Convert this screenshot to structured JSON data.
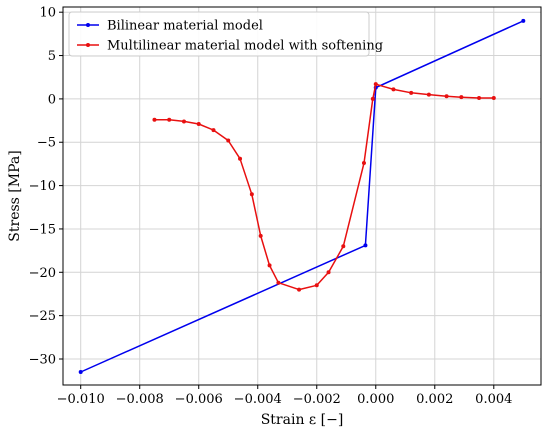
{
  "chart_data": {
    "type": "line",
    "title": "",
    "xlabel": "Strain ε [−]",
    "ylabel": "Stress [MPa]",
    "xlim": [
      -0.0106,
      0.0056
    ],
    "ylim": [
      -33,
      10.6
    ],
    "grid": true,
    "legend_position": "top-left",
    "x_ticks": [
      -0.01,
      -0.008,
      -0.006,
      -0.004,
      -0.002,
      0.0,
      0.002,
      0.004
    ],
    "x_tick_labels": [
      "−0.010",
      "−0.008",
      "−0.006",
      "−0.004",
      "−0.002",
      "0.000",
      "0.002",
      "0.004"
    ],
    "y_ticks": [
      10,
      5,
      0,
      -5,
      -10,
      -15,
      -20,
      -25,
      -30
    ],
    "y_tick_labels": [
      "10",
      "5",
      "0",
      "−5",
      "−10",
      "−15",
      "−20",
      "−25",
      "−30"
    ],
    "series": [
      {
        "name": "Bilinear material model",
        "color": "#0000ee",
        "points": [
          [
            -0.01,
            -31.5
          ],
          [
            -0.00035,
            -16.9
          ],
          [
            0.0,
            1.3
          ],
          [
            0.005,
            9.0
          ]
        ]
      },
      {
        "name": "Multilinear material model with softening",
        "color": "#e81010",
        "points": [
          [
            -0.0075,
            -2.4
          ],
          [
            -0.007,
            -2.4
          ],
          [
            -0.0065,
            -2.6
          ],
          [
            -0.006,
            -2.9
          ],
          [
            -0.0055,
            -3.6
          ],
          [
            -0.005,
            -4.8
          ],
          [
            -0.0046,
            -6.9
          ],
          [
            -0.0042,
            -11.0
          ],
          [
            -0.0039,
            -15.8
          ],
          [
            -0.0036,
            -19.2
          ],
          [
            -0.0033,
            -21.2
          ],
          [
            -0.0026,
            -22.0
          ],
          [
            -0.002,
            -21.5
          ],
          [
            -0.0016,
            -20.0
          ],
          [
            -0.0011,
            -17.0
          ],
          [
            -0.0004,
            -7.4
          ],
          [
            -0.0001,
            0.0
          ],
          [
            0.0,
            1.7
          ],
          [
            0.0006,
            1.1
          ],
          [
            0.0012,
            0.7
          ],
          [
            0.0018,
            0.5
          ],
          [
            0.0024,
            0.3
          ],
          [
            0.0029,
            0.2
          ],
          [
            0.0035,
            0.1
          ],
          [
            0.004,
            0.1
          ]
        ]
      }
    ]
  }
}
